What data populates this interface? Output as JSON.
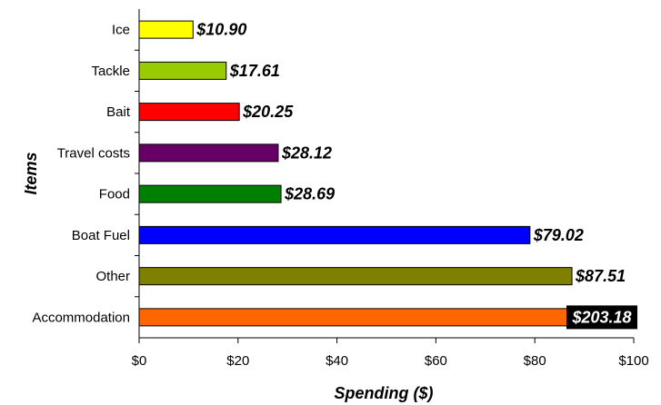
{
  "chart_data": {
    "type": "bar",
    "orientation": "horizontal",
    "categories": [
      "Ice",
      "Tackle",
      "Bait",
      "Travel costs",
      "Food",
      "Boat Fuel",
      "Other",
      "Accommodation"
    ],
    "values": [
      10.9,
      17.61,
      20.25,
      28.12,
      28.69,
      79.02,
      87.51,
      203.18
    ],
    "data_labels": [
      "$10.90",
      "$17.61",
      "$20.25",
      "$28.12",
      "$28.69",
      "$79.02",
      "$87.51",
      "$203.18"
    ],
    "bar_colors": [
      "#ffff00",
      "#99cc00",
      "#ff0000",
      "#660066",
      "#008000",
      "#0000ff",
      "#808000",
      "#ff6600"
    ],
    "xlabel": "Spending ($)",
    "ylabel": "Items",
    "xlim": [
      0,
      100
    ],
    "x_ticks": [
      0,
      20,
      40,
      60,
      80,
      100
    ],
    "x_tick_labels": [
      "$0",
      "$20",
      "$40",
      "$60",
      "$80",
      "$100"
    ],
    "grid": false,
    "legend": "none"
  }
}
